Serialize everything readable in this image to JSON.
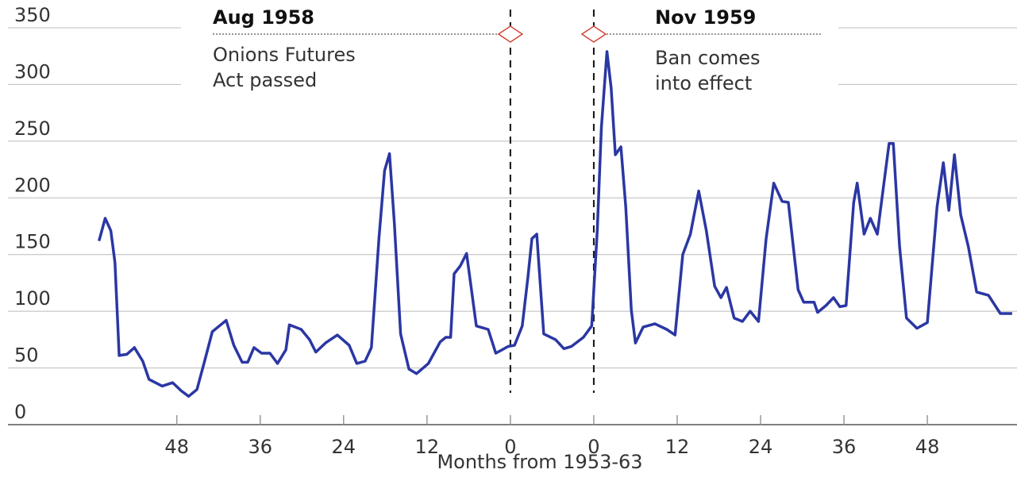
{
  "chart_data": {
    "type": "line",
    "x_label": "Months from 1953-63",
    "annotations": [
      {
        "title": "Aug 1958",
        "lines": [
          "Onions Futures",
          "Act passed"
        ],
        "x": 0
      },
      {
        "title": "Nov 1959",
        "lines": [
          "Ban comes",
          "into effect"
        ],
        "x": 12
      }
    ],
    "xlim": [
      -72.3,
      72.9
    ],
    "xticks": [
      {
        "value": -48,
        "label": "48"
      },
      {
        "value": -36,
        "label": "36"
      },
      {
        "value": -24,
        "label": "24"
      },
      {
        "value": -12,
        "label": "12"
      },
      0,
      {
        "value": 12,
        "label": "0"
      },
      {
        "value": 24,
        "label": "12"
      },
      {
        "value": 36,
        "label": "24"
      },
      {
        "value": 48,
        "label": "36"
      },
      {
        "value": 60,
        "label": "48"
      }
    ],
    "ylim": [
      0,
      350
    ],
    "yticks": [
      0,
      50,
      100,
      150,
      200,
      250,
      300,
      350
    ],
    "grid": true,
    "series": [
      {
        "color": "#2b37a3",
        "x": [
          -59.2,
          -58.3,
          -57.5,
          -56.9,
          -56.3,
          -55.2,
          -54.1,
          -52.9,
          -52.0,
          -50.1,
          -48.6,
          -47.4,
          -46.3,
          -45.1,
          -44.0,
          -42.9,
          -41.7,
          -40.9,
          -39.8,
          -38.6,
          -37.8,
          -36.9,
          -35.8,
          -34.6,
          -33.5,
          -32.3,
          -31.8,
          -30.1,
          -28.9,
          -28.0,
          -26.6,
          -24.9,
          -23.2,
          -22.1,
          -20.9,
          -20.0,
          -18.9,
          -18.1,
          -17.4,
          -16.7,
          -15.8,
          -14.6,
          -13.5,
          -11.8,
          -10.1,
          -9.3,
          -8.6,
          -8.1,
          -7.2,
          -6.3,
          -4.9,
          -3.2,
          -2.1,
          -0.3,
          0.6,
          1.7,
          2.5,
          3.1,
          3.8,
          4.8,
          6.5,
          7.7,
          8.8,
          10.5,
          11.7,
          12.5,
          13.1,
          13.9,
          14.5,
          15.1,
          15.9,
          16.6,
          17.4,
          18.0,
          19.1,
          20.8,
          22.5,
          23.7,
          24.8,
          25.9,
          27.1,
          28.2,
          29.4,
          30.3,
          31.1,
          32.2,
          33.4,
          34.5,
          35.7,
          36.8,
          37.9,
          39.1,
          40.0,
          41.4,
          42.2,
          43.7,
          44.2,
          45.4,
          46.5,
          47.4,
          48.3,
          49.4,
          49.9,
          50.9,
          51.8,
          52.8,
          53.6,
          54.5,
          55.1,
          56.0,
          57.0,
          58.5,
          60.0,
          61.4,
          62.3,
          63.1,
          63.9,
          64.8,
          65.9,
          67.1,
          68.8,
          70.5,
          72.2
        ],
        "values": [
          162,
          182,
          171,
          143,
          61,
          62,
          68,
          56,
          40,
          34,
          37,
          30,
          25,
          31,
          56,
          82,
          88,
          92,
          70,
          55,
          55,
          68,
          63,
          63,
          54,
          66,
          88,
          84,
          75,
          64,
          72,
          79,
          70,
          54,
          56,
          68,
          165,
          224,
          239,
          178,
          80,
          49,
          45,
          54,
          73,
          77,
          77,
          133,
          140,
          151,
          87,
          84,
          63,
          69,
          70,
          87,
          129,
          164,
          168,
          80,
          75,
          67,
          69,
          77,
          87,
          171,
          262,
          329,
          297,
          238,
          245,
          192,
          101,
          72,
          86,
          89,
          84,
          79,
          150,
          168,
          206,
          171,
          122,
          112,
          121,
          94,
          91,
          100,
          91,
          164,
          213,
          197,
          196,
          119,
          108,
          108,
          99,
          105,
          112,
          104,
          105,
          196,
          213,
          168,
          182,
          168,
          206,
          248,
          248,
          157,
          94,
          85,
          90,
          192,
          231,
          189,
          238,
          185,
          157,
          117,
          114,
          98,
          98
        ]
      }
    ]
  }
}
